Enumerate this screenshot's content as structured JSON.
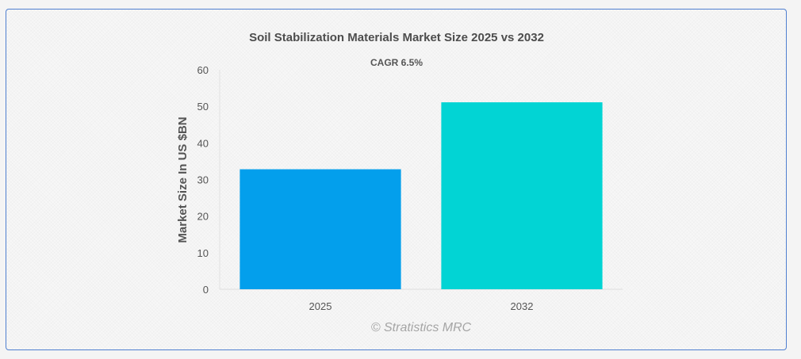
{
  "chart_data": {
    "type": "bar",
    "title": "Soil Stabilization Materials Market Size 2025 vs 2032",
    "subtitle": "CAGR 6.5%",
    "xlabel": "",
    "ylabel": "Market Size In US $BN",
    "categories": [
      "2025",
      "2032"
    ],
    "values": [
      32.8,
      51.1
    ],
    "colors": [
      "#039fec",
      "#02d4d4"
    ],
    "ylim": [
      0,
      60
    ],
    "yticks": [
      0,
      10,
      20,
      30,
      40,
      50,
      60
    ],
    "grid": false,
    "legend": "none"
  },
  "credit": "© Stratistics MRC"
}
